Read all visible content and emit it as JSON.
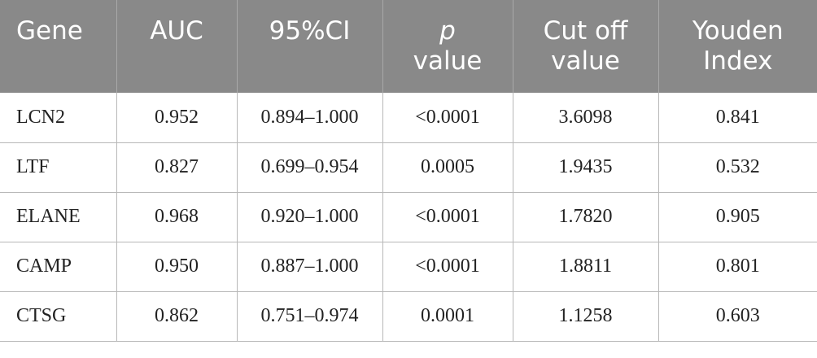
{
  "header": {
    "gene": "Gene",
    "auc": "AUC",
    "ci": "95%CI",
    "p_line1": "p",
    "p_line2": "value",
    "cutoff_line1": "Cut off",
    "cutoff_line2": "value",
    "youden_line1": "Youden",
    "youden_line2": "Index"
  },
  "rows": [
    {
      "gene": "LCN2",
      "auc": "0.952",
      "ci": "0.894–1.000",
      "p": "<0.0001",
      "cutoff": "3.6098",
      "youden": "0.841"
    },
    {
      "gene": "LTF",
      "auc": "0.827",
      "ci": "0.699–0.954",
      "p": "0.0005",
      "cutoff": "1.9435",
      "youden": "0.532"
    },
    {
      "gene": "ELANE",
      "auc": "0.968",
      "ci": "0.920–1.000",
      "p": "<0.0001",
      "cutoff": "1.7820",
      "youden": "0.905"
    },
    {
      "gene": "CAMP",
      "auc": "0.950",
      "ci": "0.887–1.000",
      "p": "<0.0001",
      "cutoff": "1.8811",
      "youden": "0.801"
    },
    {
      "gene": "CTSG",
      "auc": "0.862",
      "ci": "0.751–0.974",
      "p": "0.0001",
      "cutoff": "1.1258",
      "youden": "0.603"
    }
  ],
  "colors": {
    "header_bg": "#898989",
    "header_text": "#ffffff",
    "grid": "#b8b8b8"
  }
}
